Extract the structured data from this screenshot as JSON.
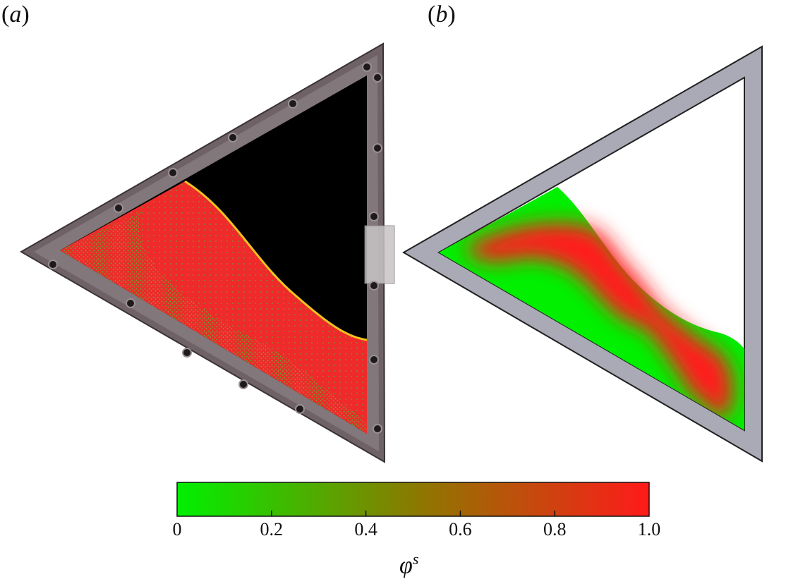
{
  "panels": {
    "a": {
      "letter": "a",
      "open": "(",
      "close": ")"
    },
    "b": {
      "letter": "b",
      "open": "(",
      "close": ")"
    }
  },
  "colorbar": {
    "symbol": "φ",
    "superscript": "s",
    "ticks": [
      "0",
      "0.2",
      "0.4",
      "0.6",
      "0.8",
      "1.0"
    ],
    "tick_values": [
      0,
      0.2,
      0.4,
      0.6,
      0.8,
      1.0
    ],
    "range": [
      0,
      1.0
    ],
    "colors": {
      "low": "#00f000",
      "mid": "#8a7a00",
      "high": "#ff1a1a"
    }
  },
  "colors": {
    "frame_gray": "#a9aab5",
    "chamber_dark": "#000000",
    "metal_rim": "#6f6266",
    "granular_red": "#ee2a2a",
    "granular_green": "#3fbf2f",
    "interface_yellow": "#f2c21e"
  }
}
